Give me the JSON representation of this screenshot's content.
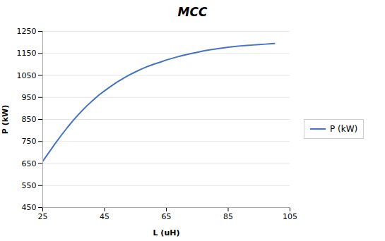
{
  "chart_data": {
    "type": "line",
    "title": "MCC",
    "xlabel": "L (uH)",
    "ylabel": "P (kW)",
    "x": [
      25,
      27,
      29,
      31,
      33,
      35,
      37,
      39,
      41,
      43,
      45,
      47,
      49,
      51,
      53,
      55,
      57,
      59,
      61,
      63,
      65,
      67,
      69,
      71,
      73,
      75,
      77,
      79,
      81,
      83,
      85,
      87,
      89,
      91,
      93,
      95,
      97,
      99,
      100
    ],
    "series": [
      {
        "name": "P (kW)",
        "color": "#4472C4",
        "values": [
          660,
          700,
          740,
          778,
          814,
          848,
          879,
          908,
          934,
          959,
          980,
          1000,
          1019,
          1036,
          1052,
          1066,
          1079,
          1091,
          1101,
          1110,
          1120,
          1128,
          1136,
          1143,
          1149,
          1155,
          1161,
          1166,
          1170,
          1174,
          1178,
          1181,
          1184,
          1186,
          1188,
          1190,
          1192,
          1194,
          1195
        ]
      }
    ],
    "xlim": [
      25,
      105
    ],
    "xticks": [
      25,
      45,
      65,
      85,
      105
    ],
    "ylim": [
      450,
      1250
    ],
    "yticks": [
      450,
      550,
      650,
      750,
      850,
      950,
      1050,
      1150,
      1250
    ],
    "grid": "y",
    "legend": "right"
  }
}
